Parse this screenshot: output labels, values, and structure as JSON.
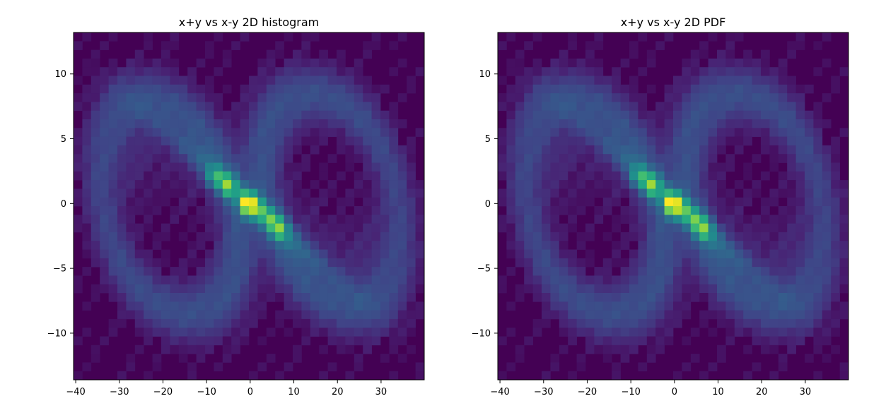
{
  "chart_data": [
    {
      "type": "heatmap",
      "title": "x+y vs x-y 2D histogram",
      "xlabel": "",
      "ylabel": "",
      "xlim": [
        -40.5,
        39.9
      ],
      "ylim": [
        -13.6,
        13.2
      ],
      "xticks": [
        -40,
        -30,
        -20,
        -10,
        0,
        10,
        20,
        30
      ],
      "yticks": [
        -10,
        -5,
        0,
        5,
        10
      ],
      "x_bins": 40,
      "y_bins": 40,
      "colormap": "viridis",
      "structure": "two lobes; left lobe centered near (-19, 0), right lobe near (19, 0); dense diagonal band from (-20, 6) through (0, 0) to (20, -6); brightest bins near (-5, 1.4), (0, 0), (7, -2)",
      "bright_points": [
        {
          "x": -5,
          "y": 1.4,
          "value": 1.0
        },
        {
          "x": -1,
          "y": 0.0,
          "value": 1.0
        },
        {
          "x": 0,
          "y": 0.0,
          "value": 1.0
        },
        {
          "x": 7,
          "y": -2.0,
          "value": 0.85
        },
        {
          "x": -8,
          "y": 2.0,
          "value": 0.75
        },
        {
          "x": 2,
          "y": -0.5,
          "value": 0.8
        },
        {
          "x": 5,
          "y": -1.3,
          "value": 0.8
        }
      ]
    },
    {
      "type": "heatmap",
      "title": "x+y vs x-y 2D PDF",
      "xlabel": "",
      "ylabel": "",
      "xlim": [
        -40.5,
        39.9
      ],
      "ylim": [
        -13.6,
        13.2
      ],
      "xticks": [
        -40,
        -30,
        -20,
        -10,
        0,
        10,
        20,
        30
      ],
      "yticks": [
        -10,
        -5,
        0,
        5,
        10
      ],
      "x_bins": 40,
      "y_bins": 40,
      "colormap": "viridis",
      "structure": "same distribution as histogram normalized as PDF; two lobes with dense diagonal band",
      "bright_points": [
        {
          "x": -5,
          "y": 1.4,
          "value": 1.0
        },
        {
          "x": -1,
          "y": 0.0,
          "value": 1.0
        },
        {
          "x": 0,
          "y": 0.0,
          "value": 1.0
        },
        {
          "x": 7,
          "y": -2.0,
          "value": 0.85
        },
        {
          "x": -8,
          "y": 2.0,
          "value": 0.75
        },
        {
          "x": 2,
          "y": -0.5,
          "value": 0.8
        },
        {
          "x": 5,
          "y": -1.3,
          "value": 0.8
        }
      ]
    }
  ]
}
